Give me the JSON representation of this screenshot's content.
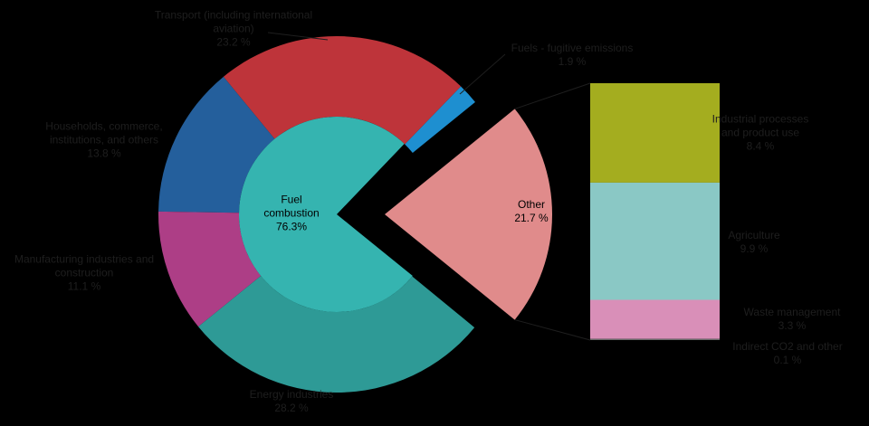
{
  "chart_data": {
    "type": "pie_of_bar",
    "ring": {
      "categories": [
        "Fuels - fugitive emissions",
        "Transport (including international aviation)",
        "Households, commerce, institutions, and others",
        "Manufacturing industries and construction",
        "Energy industries"
      ],
      "values": [
        1.9,
        23.2,
        13.8,
        11.1,
        28.2
      ],
      "value_labels": [
        "1.9 %",
        "23.2 %",
        "13.8 %",
        "11.1 %",
        "28.2 %"
      ],
      "colors": [
        "#1e8fd0",
        "#be343a",
        "#245f9c",
        "#ad3e86",
        "#2e9a96"
      ]
    },
    "center": {
      "label": "Fuel combustion",
      "value": 76.3,
      "value_label": "76.3%",
      "color": "#35b4b0"
    },
    "other": {
      "label": "Other",
      "value": 21.7,
      "value_label": "21.7 %",
      "color": "#e08b8b"
    },
    "bar": {
      "categories": [
        "Industrial processes and product use",
        "Agriculture",
        "Waste management",
        "Indirect CO2 and other"
      ],
      "values": [
        8.4,
        9.9,
        3.3,
        0.1
      ],
      "value_labels": [
        "8.4 %",
        "9.9 %",
        "3.3 %",
        "0.1 %"
      ],
      "colors": [
        "#a4ad1f",
        "#8ac8c5",
        "#d98fb8",
        "#6a6a6a"
      ]
    }
  }
}
